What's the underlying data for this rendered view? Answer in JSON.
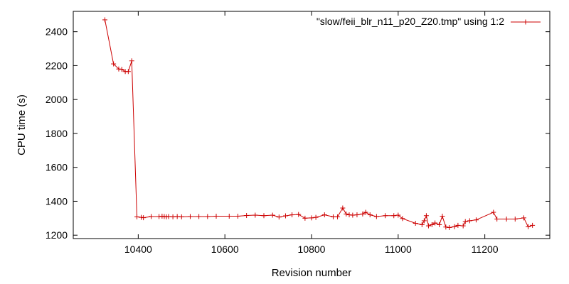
{
  "chart_data": {
    "type": "line",
    "title": "",
    "xlabel": "Revision number",
    "ylabel": "CPU time (s)",
    "xlim": [
      10250,
      11350
    ],
    "ylim": [
      1180,
      2520
    ],
    "xticks": [
      10400,
      10600,
      10800,
      11000,
      11200
    ],
    "yticks": [
      1200,
      1400,
      1600,
      1800,
      2000,
      2200,
      2400
    ],
    "grid": false,
    "legend_position": "top-right",
    "series": [
      {
        "name": "\"slow/feii_blr_n11_p20_Z20.tmp\" using 1:2",
        "color": "#cc0000",
        "marker": "plus",
        "points": [
          [
            10323,
            2470
          ],
          [
            10343,
            2210
          ],
          [
            10355,
            2180
          ],
          [
            10362,
            2178
          ],
          [
            10370,
            2165
          ],
          [
            10377,
            2165
          ],
          [
            10385,
            2228
          ],
          [
            10397,
            1308
          ],
          [
            10407,
            1305
          ],
          [
            10412,
            1303
          ],
          [
            10430,
            1310
          ],
          [
            10448,
            1310
          ],
          [
            10455,
            1312
          ],
          [
            10460,
            1310
          ],
          [
            10465,
            1308
          ],
          [
            10470,
            1310
          ],
          [
            10480,
            1308
          ],
          [
            10490,
            1310
          ],
          [
            10500,
            1308
          ],
          [
            10520,
            1310
          ],
          [
            10540,
            1310
          ],
          [
            10560,
            1310
          ],
          [
            10580,
            1312
          ],
          [
            10610,
            1312
          ],
          [
            10630,
            1312
          ],
          [
            10650,
            1316
          ],
          [
            10670,
            1318
          ],
          [
            10690,
            1315
          ],
          [
            10710,
            1318
          ],
          [
            10725,
            1307
          ],
          [
            10740,
            1314
          ],
          [
            10755,
            1320
          ],
          [
            10770,
            1322
          ],
          [
            10785,
            1300
          ],
          [
            10800,
            1302
          ],
          [
            10810,
            1305
          ],
          [
            10830,
            1320
          ],
          [
            10850,
            1308
          ],
          [
            10860,
            1308
          ],
          [
            10872,
            1360
          ],
          [
            10880,
            1325
          ],
          [
            10887,
            1320
          ],
          [
            10895,
            1318
          ],
          [
            10905,
            1320
          ],
          [
            10918,
            1325
          ],
          [
            10925,
            1335
          ],
          [
            10935,
            1320
          ],
          [
            10950,
            1310
          ],
          [
            10970,
            1315
          ],
          [
            10990,
            1315
          ],
          [
            11000,
            1318
          ],
          [
            11010,
            1298
          ],
          [
            11040,
            1270
          ],
          [
            11055,
            1262
          ],
          [
            11060,
            1285
          ],
          [
            11065,
            1315
          ],
          [
            11070,
            1255
          ],
          [
            11078,
            1262
          ],
          [
            11085,
            1272
          ],
          [
            11095,
            1262
          ],
          [
            11102,
            1312
          ],
          [
            11110,
            1248
          ],
          [
            11118,
            1245
          ],
          [
            11130,
            1250
          ],
          [
            11138,
            1258
          ],
          [
            11150,
            1255
          ],
          [
            11155,
            1280
          ],
          [
            11165,
            1285
          ],
          [
            11180,
            1290
          ],
          [
            11220,
            1335
          ],
          [
            11228,
            1295
          ],
          [
            11250,
            1295
          ],
          [
            11270,
            1295
          ],
          [
            11290,
            1302
          ],
          [
            11300,
            1250
          ],
          [
            11310,
            1258
          ]
        ]
      }
    ]
  }
}
